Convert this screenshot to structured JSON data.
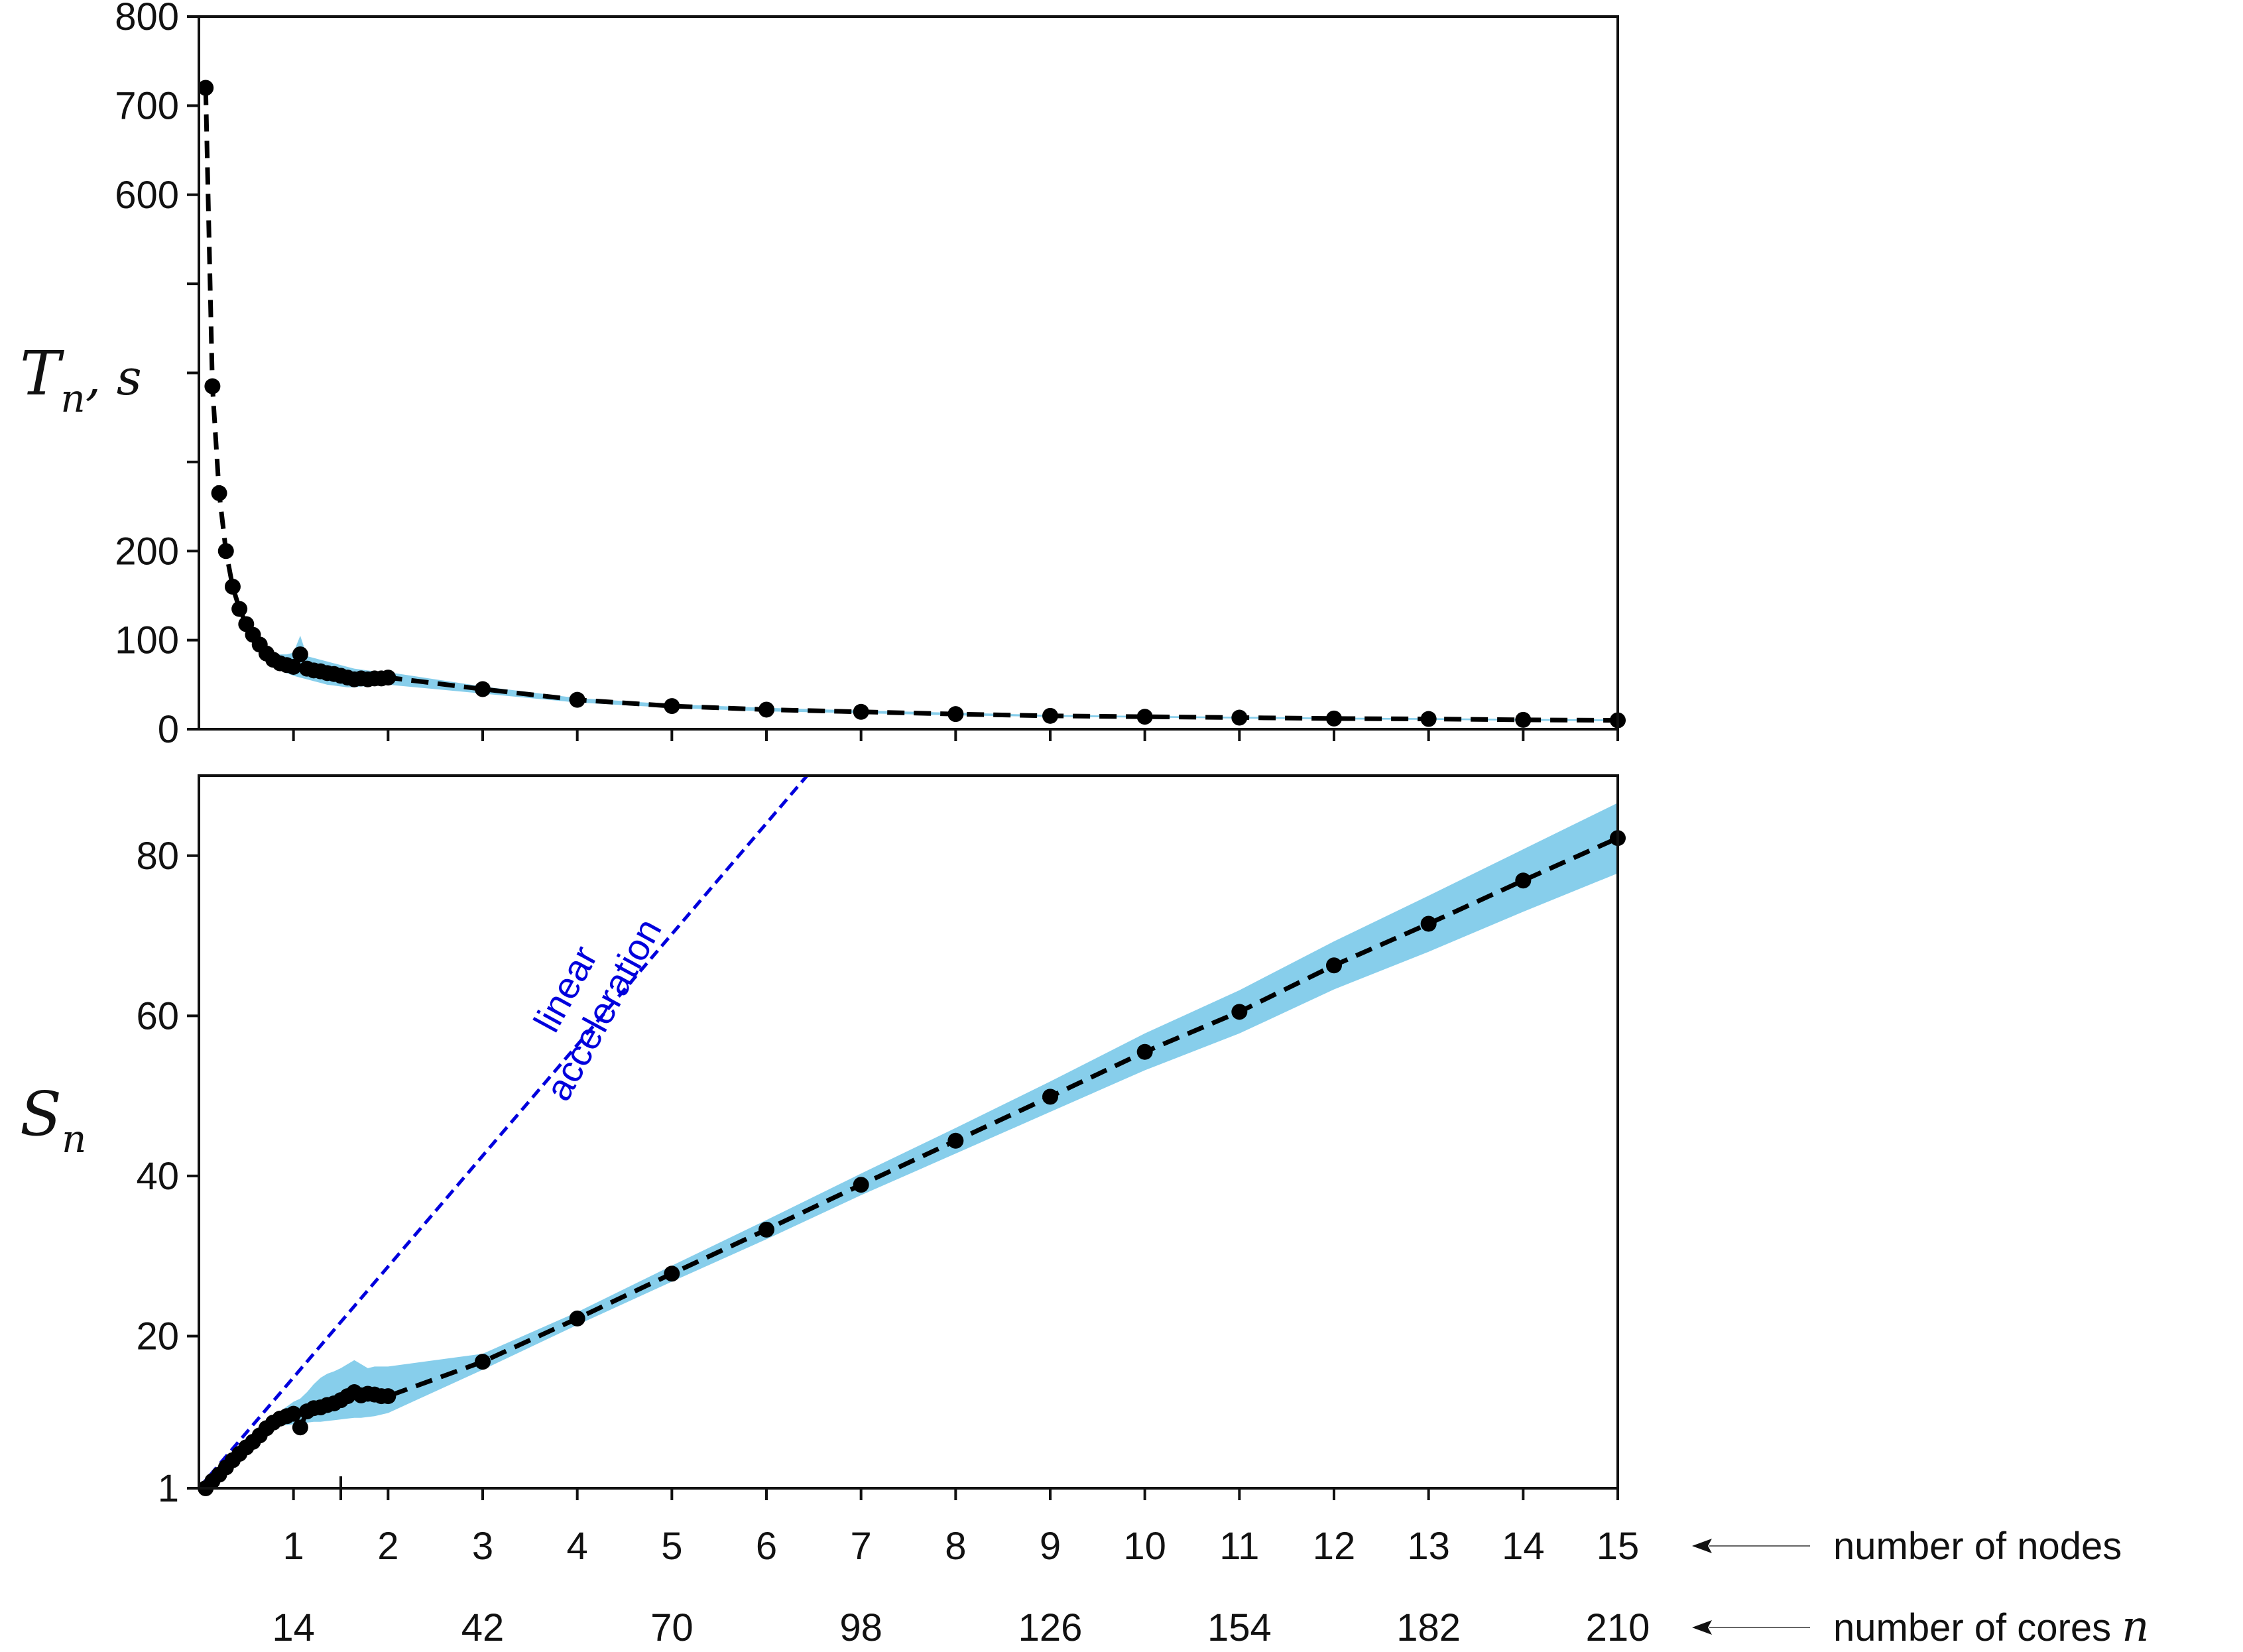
{
  "chart_data": [
    {
      "type": "line",
      "ylabel": "T",
      "ylabel_sub": "n",
      "ylabel_suffix": ", s",
      "ylim": [
        0,
        800
      ],
      "ytick_labels": [
        "0",
        "100",
        "200",
        "600",
        "700",
        "800"
      ],
      "y_ticks_unlabeled": [
        300,
        400,
        500
      ],
      "xlim": [
        0,
        15
      ],
      "nodes_per_core_unit": 14,
      "series": [
        {
          "x": [
            0.0714,
            0.1429,
            0.2143,
            0.2857,
            0.3571,
            0.4286,
            0.5,
            0.5714,
            0.6429,
            0.7143,
            0.7857,
            0.8571,
            0.9286,
            1.0,
            1.0714,
            1.1429,
            1.2143,
            1.2857,
            1.3571,
            1.4286,
            1.5,
            1.5714,
            1.6429,
            1.7143,
            1.7857,
            1.8571,
            1.9286,
            2.0,
            3,
            4,
            5,
            6,
            7,
            8,
            9,
            10,
            11,
            12,
            13,
            14,
            15
          ],
          "values": [
            720,
            385,
            265,
            200,
            160,
            135,
            118,
            106,
            95,
            85,
            78,
            74,
            72,
            70,
            84,
            68,
            66,
            65,
            63,
            62,
            60,
            58,
            56,
            57,
            56,
            57,
            57,
            58,
            45,
            33,
            26,
            22,
            19.5,
            17,
            15,
            14,
            13,
            12,
            11.5,
            10.5,
            10
          ],
          "band_low": [
            720,
            385,
            265,
            200,
            160,
            135,
            118,
            104,
            92,
            80,
            73,
            67,
            63,
            60,
            58,
            56,
            54,
            52,
            50,
            49,
            48,
            47,
            47,
            48,
            48,
            49,
            49,
            50,
            40,
            30,
            24,
            20,
            18,
            15.5,
            14,
            13,
            12,
            11,
            10.5,
            9.5,
            9
          ],
          "band_high": [
            720,
            385,
            265,
            200,
            160,
            135,
            118,
            108,
            98,
            90,
            85,
            84,
            84,
            86,
            105,
            82,
            80,
            78,
            76,
            74,
            72,
            70,
            68,
            67,
            66,
            65,
            65,
            64,
            48,
            35,
            28,
            24,
            21,
            18.5,
            16,
            15,
            14,
            13,
            12.5,
            11.5,
            11
          ]
        }
      ]
    },
    {
      "type": "line",
      "ylabel": "S",
      "ylabel_sub": "n",
      "ylim": [
        1,
        90
      ],
      "ytick_labels": [
        "1",
        "20",
        "40",
        "60",
        "80"
      ],
      "xlim": [
        0,
        15
      ],
      "annotation": [
        "linear",
        "acceleration"
      ],
      "reference_line": {
        "name": "linear acceleration",
        "x": [
          0,
          6.43
        ],
        "values": [
          1,
          90
        ]
      },
      "series": [
        {
          "x": [
            0.0714,
            0.1429,
            0.2143,
            0.2857,
            0.3571,
            0.4286,
            0.5,
            0.5714,
            0.6429,
            0.7143,
            0.7857,
            0.8571,
            0.9286,
            1.0,
            1.0714,
            1.1429,
            1.2143,
            1.2857,
            1.3571,
            1.4286,
            1.5,
            1.5714,
            1.6429,
            1.7143,
            1.7857,
            1.8571,
            1.9286,
            2.0,
            3,
            4,
            5,
            6,
            7,
            8,
            9,
            10,
            11,
            12,
            13,
            14,
            15
          ],
          "values": [
            1,
            1.9,
            2.7,
            3.6,
            4.5,
            5.3,
            6.1,
            6.8,
            7.6,
            8.5,
            9.2,
            9.7,
            10.0,
            10.3,
            8.6,
            10.6,
            11.0,
            11.1,
            11.4,
            11.6,
            12.0,
            12.5,
            13.0,
            12.6,
            12.8,
            12.7,
            12.5,
            12.5,
            16.8,
            22.2,
            27.8,
            33.3,
            38.9,
            44.4,
            49.9,
            55.5,
            60.5,
            66.3,
            71.5,
            76.9,
            82.2
          ],
          "band_low": [
            1,
            1.9,
            2.7,
            3.6,
            4.5,
            5.3,
            6.1,
            6.7,
            7.4,
            8.1,
            8.6,
            8.8,
            8.9,
            9.0,
            8.6,
            9.2,
            9.3,
            9.3,
            9.4,
            9.5,
            9.6,
            9.7,
            9.8,
            9.8,
            9.9,
            10.0,
            10.2,
            10.4,
            15.8,
            21.4,
            26.8,
            32.1,
            37.6,
            42.8,
            48.0,
            53.2,
            57.8,
            63.3,
            68.0,
            73.0,
            77.8
          ],
          "band_high": [
            1,
            1.9,
            2.7,
            3.6,
            4.5,
            5.3,
            6.1,
            6.9,
            7.8,
            8.8,
            9.8,
            10.6,
            11.2,
            11.8,
            12.2,
            13.0,
            14.0,
            14.8,
            15.3,
            15.6,
            16.0,
            16.5,
            17.0,
            16.5,
            16.0,
            16.2,
            16.2,
            16.2,
            17.8,
            23.0,
            28.8,
            34.5,
            40.3,
            46.0,
            51.8,
            57.8,
            63.2,
            69.3,
            75.0,
            80.8,
            86.6
          ]
        }
      ]
    }
  ],
  "x_axis": {
    "node_labels": [
      "1",
      "2",
      "3",
      "4",
      "5",
      "6",
      "7",
      "8",
      "9",
      "10",
      "11",
      "12",
      "13",
      "14",
      "15"
    ],
    "core_labels": [
      "14",
      "42",
      "70",
      "98",
      "126",
      "154",
      "182",
      "210"
    ],
    "core_values": [
      14,
      42,
      70,
      98,
      126,
      154,
      182,
      210
    ],
    "nodes_row_label": "number of nodes",
    "cores_row_label": "number of cores",
    "cores_row_symbol": "n"
  },
  "colors": {
    "band": "#87ceeb",
    "line": "#000000",
    "reference": "#0000dd"
  }
}
